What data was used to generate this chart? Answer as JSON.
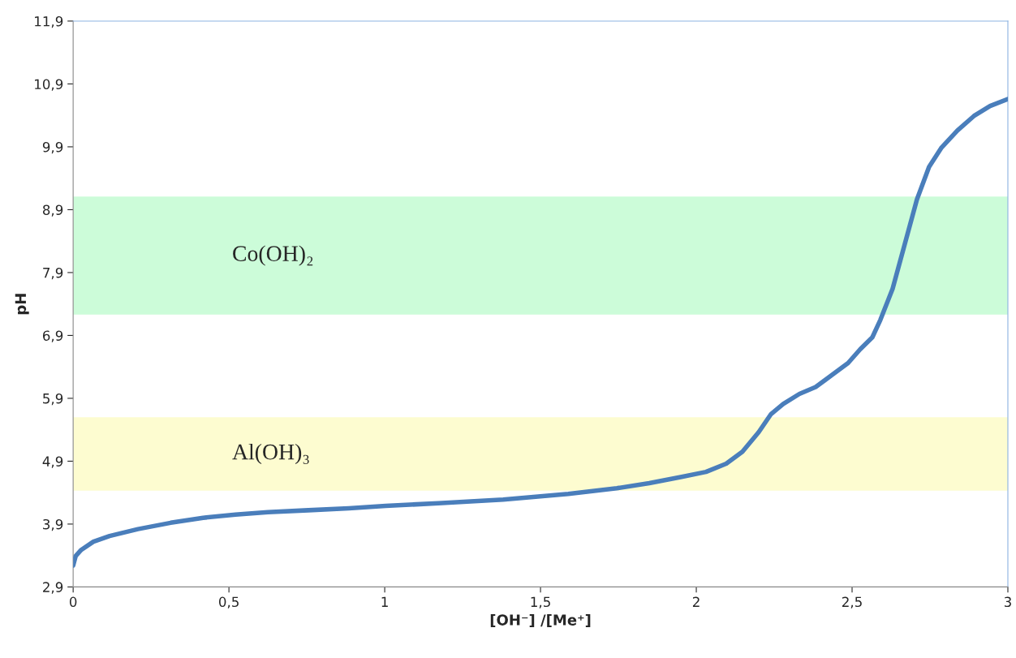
{
  "chart_data": {
    "type": "line",
    "xlabel": "[OH⁻] /[Me⁺]",
    "ylabel": "pH",
    "x": [
      0,
      0.008,
      0.026,
      0.065,
      0.117,
      0.208,
      0.313,
      0.417,
      0.521,
      0.625,
      0.755,
      0.885,
      1.003,
      1.172,
      1.38,
      1.589,
      1.745,
      1.849,
      1.953,
      2.031,
      2.096,
      2.148,
      2.2,
      2.24,
      2.279,
      2.331,
      2.383,
      2.435,
      2.487,
      2.526,
      2.565,
      2.591,
      2.63,
      2.669,
      2.708,
      2.747,
      2.786,
      2.838,
      2.891,
      2.943,
      3.0
    ],
    "series": [
      {
        "color": "#4a7ebb",
        "values": [
          3.24,
          3.39,
          3.49,
          3.62,
          3.71,
          3.82,
          3.92,
          4.0,
          4.05,
          4.09,
          4.12,
          4.15,
          4.19,
          4.23,
          4.29,
          4.38,
          4.47,
          4.55,
          4.65,
          4.73,
          4.86,
          5.05,
          5.36,
          5.65,
          5.81,
          5.97,
          6.08,
          6.27,
          6.46,
          6.68,
          6.87,
          7.15,
          7.64,
          8.35,
          9.06,
          9.58,
          9.88,
          10.16,
          10.39,
          10.55,
          10.66
        ]
      }
    ],
    "xlim": [
      0,
      3
    ],
    "ylim": [
      2.9,
      11.9
    ],
    "xticks": [
      0,
      {
        "value": 0.5,
        "label": "0,5"
      },
      1,
      {
        "value": 1.5,
        "label": "1,5"
      },
      2,
      {
        "value": 2.5,
        "label": "2,5"
      },
      3
    ],
    "yticks": [
      {
        "value": 2.9,
        "label": "2,9"
      },
      {
        "value": 3.9,
        "label": "3,9"
      },
      {
        "value": 4.9,
        "label": "4,9"
      },
      {
        "value": 5.9,
        "label": "5,9"
      },
      {
        "value": 6.9,
        "label": "6,9"
      },
      {
        "value": 7.9,
        "label": "7,9"
      },
      {
        "value": 8.9,
        "label": "8,9"
      },
      {
        "value": 9.9,
        "label": "9,9"
      },
      {
        "value": 10.9,
        "label": "10,9"
      },
      {
        "value": 11.9,
        "label": "11,9"
      }
    ],
    "bands": [
      {
        "axis": "y",
        "from": 7.23,
        "to": 9.11,
        "label": "Co(OH)₂",
        "color": "#ccfcd9"
      },
      {
        "axis": "y",
        "from": 4.43,
        "to": 5.6,
        "label": "Al(OH)₃",
        "color": "#fdfcd0"
      }
    ],
    "grid": false,
    "marker": "none",
    "line_style": "solid"
  }
}
